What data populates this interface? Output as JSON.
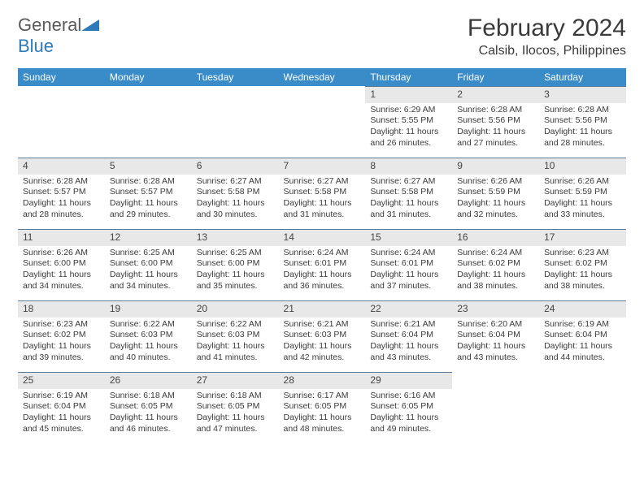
{
  "brand": {
    "name_a": "General",
    "name_b": "Blue"
  },
  "title": "February 2024",
  "location": "Calsib, Ilocos, Philippines",
  "colors": {
    "header_bg": "#3a8cc9",
    "header_fg": "#ffffff",
    "daynum_bg": "#e8e8e8",
    "daynum_border": "#5a7a95",
    "text": "#3a3a3a",
    "brand_blue": "#2f7ab8"
  },
  "weekdays": [
    "Sunday",
    "Monday",
    "Tuesday",
    "Wednesday",
    "Thursday",
    "Friday",
    "Saturday"
  ],
  "weeks": [
    [
      null,
      null,
      null,
      null,
      {
        "n": "1",
        "sr": "Sunrise: 6:29 AM",
        "ss": "Sunset: 5:55 PM",
        "d1": "Daylight: 11 hours",
        "d2": "and 26 minutes."
      },
      {
        "n": "2",
        "sr": "Sunrise: 6:28 AM",
        "ss": "Sunset: 5:56 PM",
        "d1": "Daylight: 11 hours",
        "d2": "and 27 minutes."
      },
      {
        "n": "3",
        "sr": "Sunrise: 6:28 AM",
        "ss": "Sunset: 5:56 PM",
        "d1": "Daylight: 11 hours",
        "d2": "and 28 minutes."
      }
    ],
    [
      {
        "n": "4",
        "sr": "Sunrise: 6:28 AM",
        "ss": "Sunset: 5:57 PM",
        "d1": "Daylight: 11 hours",
        "d2": "and 28 minutes."
      },
      {
        "n": "5",
        "sr": "Sunrise: 6:28 AM",
        "ss": "Sunset: 5:57 PM",
        "d1": "Daylight: 11 hours",
        "d2": "and 29 minutes."
      },
      {
        "n": "6",
        "sr": "Sunrise: 6:27 AM",
        "ss": "Sunset: 5:58 PM",
        "d1": "Daylight: 11 hours",
        "d2": "and 30 minutes."
      },
      {
        "n": "7",
        "sr": "Sunrise: 6:27 AM",
        "ss": "Sunset: 5:58 PM",
        "d1": "Daylight: 11 hours",
        "d2": "and 31 minutes."
      },
      {
        "n": "8",
        "sr": "Sunrise: 6:27 AM",
        "ss": "Sunset: 5:58 PM",
        "d1": "Daylight: 11 hours",
        "d2": "and 31 minutes."
      },
      {
        "n": "9",
        "sr": "Sunrise: 6:26 AM",
        "ss": "Sunset: 5:59 PM",
        "d1": "Daylight: 11 hours",
        "d2": "and 32 minutes."
      },
      {
        "n": "10",
        "sr": "Sunrise: 6:26 AM",
        "ss": "Sunset: 5:59 PM",
        "d1": "Daylight: 11 hours",
        "d2": "and 33 minutes."
      }
    ],
    [
      {
        "n": "11",
        "sr": "Sunrise: 6:26 AM",
        "ss": "Sunset: 6:00 PM",
        "d1": "Daylight: 11 hours",
        "d2": "and 34 minutes."
      },
      {
        "n": "12",
        "sr": "Sunrise: 6:25 AM",
        "ss": "Sunset: 6:00 PM",
        "d1": "Daylight: 11 hours",
        "d2": "and 34 minutes."
      },
      {
        "n": "13",
        "sr": "Sunrise: 6:25 AM",
        "ss": "Sunset: 6:00 PM",
        "d1": "Daylight: 11 hours",
        "d2": "and 35 minutes."
      },
      {
        "n": "14",
        "sr": "Sunrise: 6:24 AM",
        "ss": "Sunset: 6:01 PM",
        "d1": "Daylight: 11 hours",
        "d2": "and 36 minutes."
      },
      {
        "n": "15",
        "sr": "Sunrise: 6:24 AM",
        "ss": "Sunset: 6:01 PM",
        "d1": "Daylight: 11 hours",
        "d2": "and 37 minutes."
      },
      {
        "n": "16",
        "sr": "Sunrise: 6:24 AM",
        "ss": "Sunset: 6:02 PM",
        "d1": "Daylight: 11 hours",
        "d2": "and 38 minutes."
      },
      {
        "n": "17",
        "sr": "Sunrise: 6:23 AM",
        "ss": "Sunset: 6:02 PM",
        "d1": "Daylight: 11 hours",
        "d2": "and 38 minutes."
      }
    ],
    [
      {
        "n": "18",
        "sr": "Sunrise: 6:23 AM",
        "ss": "Sunset: 6:02 PM",
        "d1": "Daylight: 11 hours",
        "d2": "and 39 minutes."
      },
      {
        "n": "19",
        "sr": "Sunrise: 6:22 AM",
        "ss": "Sunset: 6:03 PM",
        "d1": "Daylight: 11 hours",
        "d2": "and 40 minutes."
      },
      {
        "n": "20",
        "sr": "Sunrise: 6:22 AM",
        "ss": "Sunset: 6:03 PM",
        "d1": "Daylight: 11 hours",
        "d2": "and 41 minutes."
      },
      {
        "n": "21",
        "sr": "Sunrise: 6:21 AM",
        "ss": "Sunset: 6:03 PM",
        "d1": "Daylight: 11 hours",
        "d2": "and 42 minutes."
      },
      {
        "n": "22",
        "sr": "Sunrise: 6:21 AM",
        "ss": "Sunset: 6:04 PM",
        "d1": "Daylight: 11 hours",
        "d2": "and 43 minutes."
      },
      {
        "n": "23",
        "sr": "Sunrise: 6:20 AM",
        "ss": "Sunset: 6:04 PM",
        "d1": "Daylight: 11 hours",
        "d2": "and 43 minutes."
      },
      {
        "n": "24",
        "sr": "Sunrise: 6:19 AM",
        "ss": "Sunset: 6:04 PM",
        "d1": "Daylight: 11 hours",
        "d2": "and 44 minutes."
      }
    ],
    [
      {
        "n": "25",
        "sr": "Sunrise: 6:19 AM",
        "ss": "Sunset: 6:04 PM",
        "d1": "Daylight: 11 hours",
        "d2": "and 45 minutes."
      },
      {
        "n": "26",
        "sr": "Sunrise: 6:18 AM",
        "ss": "Sunset: 6:05 PM",
        "d1": "Daylight: 11 hours",
        "d2": "and 46 minutes."
      },
      {
        "n": "27",
        "sr": "Sunrise: 6:18 AM",
        "ss": "Sunset: 6:05 PM",
        "d1": "Daylight: 11 hours",
        "d2": "and 47 minutes."
      },
      {
        "n": "28",
        "sr": "Sunrise: 6:17 AM",
        "ss": "Sunset: 6:05 PM",
        "d1": "Daylight: 11 hours",
        "d2": "and 48 minutes."
      },
      {
        "n": "29",
        "sr": "Sunrise: 6:16 AM",
        "ss": "Sunset: 6:05 PM",
        "d1": "Daylight: 11 hours",
        "d2": "and 49 minutes."
      },
      null,
      null
    ]
  ]
}
